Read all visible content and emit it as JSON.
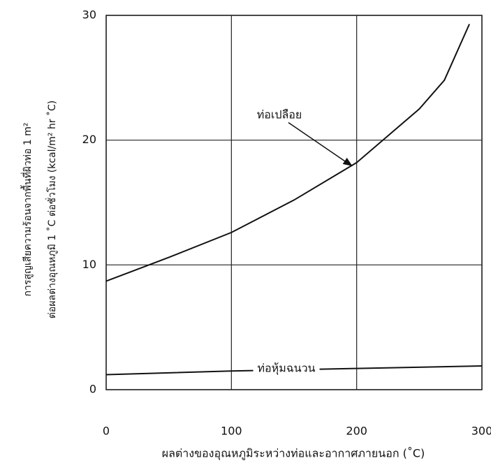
{
  "chart_data": {
    "type": "line",
    "xlabel": "ผลต่างของอุณหภูมิระหว่างท่อและอากาศภายนอก (˚C)",
    "ylabel": [
      "การสูญเสียความร้อนจากพื้นที่ผิวท่อ 1 m²",
      "ต่อผลต่างอุณหภูมิ 1 ˚C ต่อชั่วโมง (kcal/m² hr ˚C)"
    ],
    "series": [
      {
        "name": "ท่อเปลือย",
        "color": "#111111",
        "x": [
          0,
          50,
          100,
          150,
          200,
          250,
          270,
          290
        ],
        "values": [
          8.7,
          10.6,
          12.6,
          15.2,
          18.2,
          22.5,
          24.8,
          29.3
        ]
      },
      {
        "name": "ท่อหุ้มฉนวน",
        "color": "#111111",
        "x": [
          0,
          100,
          200,
          300
        ],
        "values": [
          1.2,
          1.5,
          1.7,
          1.9
        ]
      }
    ],
    "xlim": [
      0,
      300
    ],
    "xticks": [
      0,
      100,
      200,
      300
    ],
    "ylim": [
      0,
      30
    ],
    "yticks": [
      0,
      10,
      20,
      30
    ],
    "grid": true
  }
}
